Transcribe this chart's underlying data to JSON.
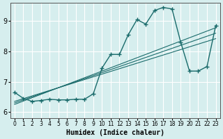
{
  "xlabel": "Humidex (Indice chaleur)",
  "ylabel": "",
  "bg_color": "#d6eeee",
  "grid_color": "#ffffff",
  "line_color": "#1a6b6b",
  "xlim": [
    -0.5,
    23.5
  ],
  "ylim": [
    5.8,
    9.6
  ],
  "xticks": [
    0,
    1,
    2,
    3,
    4,
    5,
    6,
    7,
    8,
    9,
    10,
    11,
    12,
    13,
    14,
    15,
    16,
    17,
    18,
    19,
    20,
    21,
    22,
    23
  ],
  "yticks": [
    6,
    7,
    8,
    9
  ],
  "main_y": [
    6.65,
    6.45,
    6.35,
    6.38,
    6.42,
    6.4,
    6.4,
    6.42,
    6.42,
    6.6,
    7.45,
    7.9,
    7.9,
    8.55,
    9.05,
    8.9,
    9.35,
    9.45,
    9.4,
    8.3,
    7.35,
    7.35,
    7.5,
    8.85
  ],
  "reg_lines": [
    [
      6.35,
      6.44,
      6.53,
      6.62,
      6.71,
      6.8,
      6.89,
      6.98,
      7.07,
      7.16,
      7.25,
      7.34,
      7.43,
      7.52,
      7.61,
      7.7,
      7.79,
      7.88,
      7.97,
      8.06,
      8.15,
      8.24,
      8.33,
      8.42
    ],
    [
      6.3,
      6.4,
      6.5,
      6.6,
      6.7,
      6.8,
      6.9,
      7.0,
      7.1,
      7.2,
      7.3,
      7.4,
      7.5,
      7.6,
      7.7,
      7.8,
      7.9,
      8.0,
      8.1,
      8.2,
      8.3,
      8.4,
      8.5,
      8.6
    ],
    [
      6.25,
      6.36,
      6.47,
      6.58,
      6.69,
      6.8,
      6.91,
      7.02,
      7.13,
      7.24,
      7.35,
      7.46,
      7.57,
      7.68,
      7.79,
      7.9,
      8.01,
      8.12,
      8.23,
      8.34,
      8.45,
      8.56,
      8.67,
      8.78
    ]
  ]
}
